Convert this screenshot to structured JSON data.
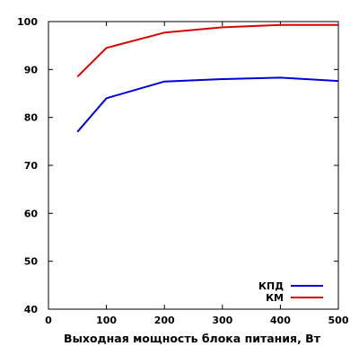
{
  "chart_data": {
    "type": "line",
    "title": "",
    "xlabel": "Выходная мощность блока питания, Вт",
    "ylabel": "",
    "xlim": [
      0,
      500
    ],
    "ylim": [
      40,
      100
    ],
    "x_ticks": [
      0,
      100,
      200,
      300,
      400,
      500
    ],
    "y_ticks": [
      40,
      50,
      60,
      70,
      80,
      90,
      100
    ],
    "grid": false,
    "legend_position": "bottom-right",
    "series": [
      {
        "name": "КПД",
        "color": "#0000dd",
        "x": [
          50,
          100,
          200,
          300,
          400,
          500
        ],
        "y": [
          77,
          84,
          87.5,
          88,
          88.3,
          87.6
        ]
      },
      {
        "name": "КМ",
        "color": "#dd0000",
        "x": [
          50,
          100,
          200,
          300,
          400,
          500
        ],
        "y": [
          88.5,
          94.5,
          97.7,
          98.8,
          99.3,
          99.3
        ]
      }
    ]
  }
}
